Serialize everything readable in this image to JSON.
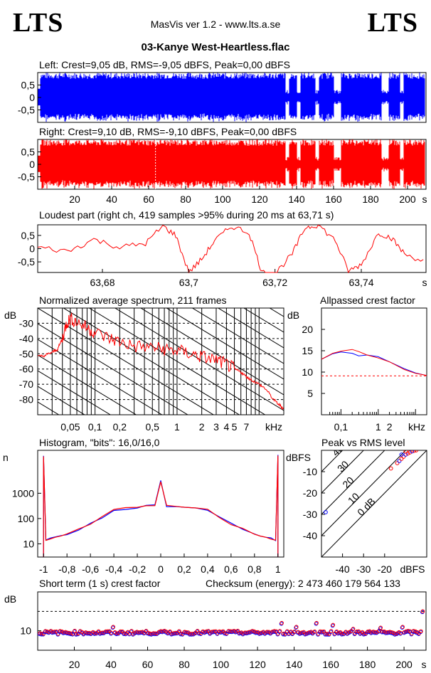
{
  "header": {
    "logo_left": "LTS",
    "logo_right": "LTS",
    "app_title": "MasVis ver 1.2 - www.lts.a.se",
    "file_title": "03-Kanye West-Heartless.flac"
  },
  "colors": {
    "left": "#0000ff",
    "right": "#ff0000",
    "grid": "#000000"
  },
  "chart_data": [
    {
      "type": "area",
      "id": "left-waveform",
      "title": "Left: Crest=9,05 dB, RMS=-9,05 dBFS, Peak=0,00 dBFS",
      "series": [
        {
          "name": "Left",
          "color": "#0000ff"
        }
      ],
      "ylim": [
        -1,
        1
      ],
      "xlim": [
        0,
        210
      ],
      "ytick_labels": [
        "0,5",
        "0",
        "-0,5"
      ],
      "ytick_values": [
        0.5,
        0,
        -0.5
      ],
      "gaps_s": [
        [
          134,
          136
        ],
        [
          140,
          142
        ],
        [
          150,
          152
        ],
        [
          160,
          164
        ],
        [
          186,
          190
        ],
        [
          196,
          198
        ]
      ]
    },
    {
      "type": "area",
      "id": "right-waveform",
      "title": "Right: Crest=9,10 dB, RMS=-9,10 dBFS, Peak=0,00 dBFS",
      "series": [
        {
          "name": "Right",
          "color": "#ff0000"
        }
      ],
      "ylim": [
        -1,
        1
      ],
      "xlim": [
        0,
        210
      ],
      "ytick_labels": [
        "0,5",
        "0",
        "-0,5"
      ],
      "ytick_values": [
        0.5,
        0,
        -0.5
      ],
      "xtick_labels": [
        "20",
        "40",
        "60",
        "80",
        "100",
        "120",
        "140",
        "160",
        "180",
        "200"
      ],
      "xtick_values": [
        20,
        40,
        60,
        80,
        100,
        120,
        140,
        160,
        180,
        200
      ],
      "xunit": "s",
      "marker_s": 63.71
    },
    {
      "type": "line",
      "id": "loudest-part",
      "title": "Loudest part (right ch, 419 samples >95% during 20 ms at 63,71 s)",
      "xlim": [
        63.665,
        63.755
      ],
      "ylim": [
        -0.9,
        0.9
      ],
      "ytick_labels": [
        "0,5",
        "0",
        "-0,5"
      ],
      "ytick_values": [
        0.5,
        0,
        -0.5
      ],
      "xtick_labels": [
        "63,68",
        "63,7",
        "63,72",
        "63,74"
      ],
      "xtick_values": [
        63.68,
        63.7,
        63.72,
        63.74
      ],
      "xunit": "s",
      "x": [
        63.665,
        63.672,
        63.678,
        63.684,
        63.69,
        63.694,
        63.697,
        63.7,
        63.703,
        63.706,
        63.71,
        63.714,
        63.717,
        63.72,
        63.724,
        63.727,
        63.73,
        63.734,
        63.737,
        63.74,
        63.744,
        63.747,
        63.75,
        63.755
      ],
      "values": [
        0.05,
        -0.1,
        0.35,
        0.05,
        0.2,
        0.85,
        0.5,
        -0.9,
        -0.4,
        0.3,
        0.85,
        0.6,
        -0.9,
        -0.95,
        -0.2,
        0.8,
        0.9,
        0.3,
        -0.85,
        -0.6,
        0.6,
        0.4,
        -0.2,
        -0.5
      ]
    },
    {
      "type": "line",
      "id": "average-spectrum",
      "title": "Normalized average spectrum, 211 frames",
      "ylabel": "dB",
      "xunit": "kHz",
      "xscale": "log",
      "xlim": [
        0.02,
        20
      ],
      "ylim": [
        -90,
        -20
      ],
      "ytick_labels": [
        "-30",
        "-40",
        "-50",
        "-60",
        "-70",
        "-80"
      ],
      "ytick_values": [
        -30,
        -40,
        -50,
        -60,
        -70,
        -80
      ],
      "xtick_labels": [
        "0,05",
        "0,1",
        "0,2",
        "0,5",
        "1",
        "2",
        "3",
        "4",
        "5",
        "7"
      ],
      "xtick_values": [
        0.05,
        0.1,
        0.2,
        0.5,
        1,
        2,
        3,
        4,
        5,
        7
      ],
      "x": [
        0.02,
        0.025,
        0.03,
        0.035,
        0.04,
        0.045,
        0.05,
        0.06,
        0.08,
        0.1,
        0.15,
        0.2,
        0.3,
        0.5,
        0.7,
        1,
        1.5,
        2,
        3,
        4,
        5,
        6,
        7,
        8,
        10,
        12,
        15,
        18,
        20
      ],
      "values": [
        -52,
        -51,
        -49,
        -47,
        -40,
        -30,
        -27,
        -29,
        -33,
        -36,
        -40,
        -42,
        -45,
        -46,
        -47,
        -48,
        -50,
        -52,
        -54,
        -57,
        -60,
        -62,
        -65,
        -67,
        -70,
        -73,
        -80,
        -84,
        -86
      ]
    },
    {
      "type": "line",
      "id": "allpassed-crest",
      "title": "Allpassed crest factor",
      "ylabel": "dB",
      "xunit": "kHz",
      "xscale": "log",
      "xlim": [
        0.03,
        20
      ],
      "ylim": [
        0,
        25
      ],
      "ytick_labels": [
        "20",
        "15",
        "10",
        "5"
      ],
      "ytick_values": [
        20,
        15,
        10,
        5
      ],
      "xtick_labels": [
        "0,1",
        "1",
        "2"
      ],
      "xtick_values": [
        0.1,
        1,
        2
      ],
      "reference_db": 9.1,
      "series": [
        {
          "name": "Left",
          "color": "#0000ff",
          "x": [
            0.03,
            0.06,
            0.1,
            0.2,
            0.3,
            0.5,
            1,
            2,
            5,
            10,
            20
          ],
          "values": [
            13,
            14.3,
            14.7,
            14.4,
            13.8,
            14,
            13.6,
            12.4,
            10.8,
            9.8,
            9.2
          ]
        },
        {
          "name": "Right",
          "color": "#ff0000",
          "x": [
            0.03,
            0.06,
            0.1,
            0.2,
            0.3,
            0.5,
            1,
            2,
            5,
            10,
            20
          ],
          "values": [
            13,
            14.4,
            14.9,
            15.3,
            14.8,
            14,
            13.3,
            12.4,
            10.6,
            9.7,
            9.2
          ]
        }
      ]
    },
    {
      "type": "line",
      "id": "histogram",
      "title": "Histogram, \"bits\": 16,0/16,0",
      "ylabel": "n",
      "yscale": "log",
      "xlim": [
        -1.05,
        1.05
      ],
      "ylim": [
        3,
        50000
      ],
      "ytick_labels": [
        "1000",
        "100",
        "10"
      ],
      "ytick_values": [
        1000,
        100,
        10
      ],
      "xtick_labels": [
        "-1",
        "-0,8",
        "-0,6",
        "-0,4",
        "-0,2",
        "0",
        "0,2",
        "0,4",
        "0,6",
        "0,8",
        "1"
      ],
      "xtick_values": [
        -1,
        -0.8,
        -0.6,
        -0.4,
        -0.2,
        0,
        0.2,
        0.4,
        0.6,
        0.8,
        1
      ],
      "x": [
        -1,
        -0.98,
        -0.9,
        -0.8,
        -0.6,
        -0.4,
        -0.2,
        -0.05,
        0,
        0.05,
        0.2,
        0.4,
        0.6,
        0.8,
        0.9,
        0.98,
        1
      ],
      "values": [
        30000,
        14,
        18,
        25,
        60,
        230,
        280,
        330,
        3000,
        330,
        280,
        230,
        60,
        25,
        18,
        14,
        30000
      ]
    },
    {
      "type": "scatter",
      "id": "peak-vs-rms",
      "title": "Peak vs RMS level",
      "ylabel": "dBFS",
      "xlabel": "dBFS",
      "xlim": [
        -50,
        0
      ],
      "ylim": [
        -50,
        0
      ],
      "ytick_labels": [
        "-10",
        "-20",
        "-30",
        "-40"
      ],
      "ytick_values": [
        -10,
        -20,
        -30,
        -40
      ],
      "xtick_labels": [
        "-40",
        "-30",
        "-20"
      ],
      "xtick_values": [
        -40,
        -30,
        -20
      ],
      "crest_labels": [
        "40",
        "30",
        "20",
        "10",
        "0 dB"
      ],
      "crest_values": [
        40,
        30,
        20,
        10,
        0
      ],
      "points": [
        [
          -48,
          -29
        ],
        [
          -17,
          -8.5
        ],
        [
          -14,
          -6
        ],
        [
          -13,
          -5
        ],
        [
          -12,
          -4
        ],
        [
          -11,
          -3
        ],
        [
          -10,
          -2
        ],
        [
          -9,
          -1.5
        ],
        [
          -8,
          -1
        ],
        [
          -7,
          -0.5
        ],
        [
          -6,
          -0.2
        ],
        [
          -5,
          0
        ],
        [
          -12,
          -2
        ],
        [
          -10,
          -0.5
        ]
      ]
    },
    {
      "type": "scatter",
      "id": "short-term-crest",
      "title": "Short term (1 s) crest factor",
      "checksum_text": "Checksum (energy):  2 473 460 179 564 133",
      "ylabel": "dB",
      "xunit": "s",
      "xlim": [
        0,
        212
      ],
      "ylim": [
        5,
        20
      ],
      "ytick_labels": [
        "10"
      ],
      "ytick_values": [
        10
      ],
      "reference_db": 15,
      "xtick_labels": [
        "20",
        "40",
        "60",
        "80",
        "100",
        "120",
        "140",
        "160",
        "180",
        "200"
      ],
      "xtick_values": [
        20,
        40,
        60,
        80,
        100,
        120,
        140,
        160,
        180,
        200
      ],
      "outliers": [
        [
          41,
          11
        ],
        [
          133,
          12
        ],
        [
          141,
          11
        ],
        [
          152,
          12
        ],
        [
          161,
          11.5
        ],
        [
          172,
          10.5
        ],
        [
          187,
          10.8
        ],
        [
          199,
          11
        ],
        [
          210,
          15
        ]
      ]
    }
  ]
}
